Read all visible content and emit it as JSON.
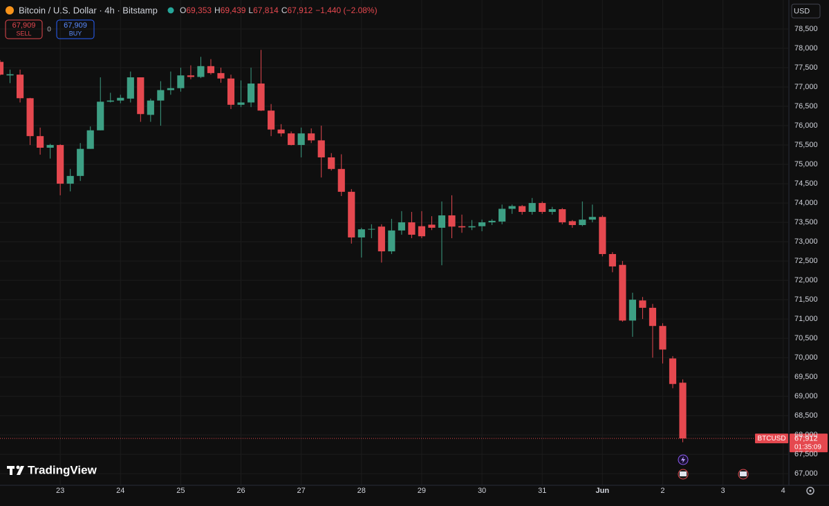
{
  "chart_data": {
    "type": "candlestick",
    "symbol_title": "Bitcoin / U.S. Dollar · 4h · Bitstamp",
    "ohlc_header": [
      {
        "key": "O",
        "value": "69,353"
      },
      {
        "key": "H",
        "value": "69,439"
      },
      {
        "key": "L",
        "value": "67,814"
      },
      {
        "key": "C",
        "value": "67,912"
      }
    ],
    "change": "−1,440 (−2.08%)",
    "sell": {
      "price": "67,909",
      "label": "SELL"
    },
    "spread": "0",
    "buy": {
      "price": "67,909",
      "label": "BUY"
    },
    "currency": "USD",
    "symbol": "BTCUSD",
    "last_price": {
      "value": 67912,
      "label": "67,912"
    },
    "countdown": "01:35:09",
    "brand": "TradingView",
    "up_color": "#3d9f84",
    "down_color": "#e5484f",
    "grid": true,
    "x": [
      0,
      4,
      8,
      12,
      16,
      20,
      24,
      28,
      32,
      36,
      40,
      44,
      48,
      52,
      56,
      60,
      64,
      68,
      72,
      76,
      80,
      84,
      88,
      92,
      96,
      100,
      104,
      108,
      112,
      116,
      120,
      124,
      128,
      132,
      136,
      140,
      144,
      148,
      152,
      156,
      160,
      164,
      168,
      172,
      176,
      180,
      184,
      188,
      192,
      196,
      200,
      204,
      208,
      212,
      216,
      220,
      224,
      228,
      232,
      236,
      240,
      244,
      248,
      252,
      256,
      260,
      264,
      268,
      272
    ],
    "open": [
      77650,
      77300,
      77320,
      76710,
      75730,
      75430,
      75500,
      74500,
      74700,
      75400,
      75880,
      76620,
      76650,
      76700,
      77250,
      76280,
      76650,
      76920,
      76970,
      77300,
      77260,
      77540,
      77360,
      77220,
      76540,
      76600,
      77090,
      76390,
      75900,
      75800,
      75500,
      75800,
      75620,
      75180,
      74880,
      74290,
      73110,
      73320,
      73390,
      72750,
      73290,
      73500,
      73400,
      73440,
      73360,
      73680,
      73400,
      73370,
      73400,
      73500,
      73520,
      73850,
      73920,
      73770,
      74000,
      73770,
      73840,
      73530,
      73430,
      73570,
      73640,
      72680,
      72400,
      70960,
      71480,
      71290,
      70820,
      69980,
      69353
    ],
    "high": [
      77700,
      77450,
      77450,
      76720,
      75950,
      75530,
      75520,
      74880,
      75550,
      75980,
      77250,
      76850,
      76800,
      77400,
      77250,
      76700,
      77150,
      77400,
      77500,
      77560,
      77780,
      77720,
      77500,
      77320,
      77170,
      77500,
      77960,
      76560,
      76040,
      75850,
      75950,
      75930,
      76000,
      75290,
      75260,
      74360,
      73360,
      73450,
      73450,
      73590,
      73790,
      73770,
      73790,
      73660,
      74040,
      74200,
      73700,
      73560,
      73570,
      73580,
      73960,
      73960,
      73950,
      74130,
      74040,
      73900,
      73870,
      73560,
      74040,
      73960,
      73680,
      72730,
      72500,
      71680,
      71570,
      71390,
      70890,
      70040,
      69439
    ],
    "low": [
      77300,
      77100,
      76600,
      75500,
      75250,
      75150,
      74200,
      74300,
      74570,
      75400,
      75880,
      76600,
      76580,
      76600,
      76100,
      76100,
      76000,
      76800,
      76880,
      77200,
      77230,
      77320,
      77110,
      76430,
      76480,
      76480,
      76380,
      75730,
      75720,
      75490,
      75180,
      75550,
      74660,
      74840,
      74180,
      72950,
      72590,
      73090,
      72460,
      72680,
      73180,
      73090,
      73090,
      73300,
      72390,
      73090,
      73230,
      73300,
      73270,
      73430,
      73450,
      73720,
      73700,
      73700,
      73720,
      73700,
      73450,
      73360,
      73400,
      73500,
      72620,
      72210,
      70930,
      70540,
      71000,
      70000,
      69850,
      69210,
      67814
    ],
    "close": [
      77320,
      77330,
      76710,
      75730,
      75430,
      75500,
      74500,
      74700,
      75400,
      75880,
      76620,
      76650,
      76720,
      77250,
      76300,
      76650,
      76920,
      76970,
      77300,
      77260,
      77540,
      77360,
      77220,
      76540,
      76600,
      77090,
      76390,
      75900,
      75800,
      75500,
      75800,
      75620,
      75180,
      74880,
      74290,
      73110,
      73320,
      73330,
      72750,
      73290,
      73500,
      73180,
      73140,
      73360,
      73680,
      73390,
      73370,
      73400,
      73500,
      73540,
      73850,
      73920,
      73770,
      74000,
      73770,
      73840,
      73500,
      73430,
      73570,
      73640,
      72680,
      72360,
      70960,
      71500,
      71290,
      70820,
      70210,
      69320,
      67912
    ],
    "xlim": [
      0,
      314
    ],
    "xticks": [
      {
        "value": 24,
        "label": "23"
      },
      {
        "value": 48,
        "label": "24"
      },
      {
        "value": 72,
        "label": "25"
      },
      {
        "value": 96,
        "label": "26"
      },
      {
        "value": 120,
        "label": "27"
      },
      {
        "value": 144,
        "label": "28"
      },
      {
        "value": 168,
        "label": "29"
      },
      {
        "value": 192,
        "label": "30"
      },
      {
        "value": 216,
        "label": "31"
      },
      {
        "value": 240,
        "label": "Jun"
      },
      {
        "value": 264,
        "label": "2"
      },
      {
        "value": 288,
        "label": "3"
      },
      {
        "value": 312,
        "label": "4"
      }
    ],
    "ylim": [
      66700,
      79250
    ],
    "yticks": [
      {
        "value": 78500,
        "label": "78,500"
      },
      {
        "value": 78000,
        "label": "78,000"
      },
      {
        "value": 77500,
        "label": "77,500"
      },
      {
        "value": 77000,
        "label": "77,000"
      },
      {
        "value": 76500,
        "label": "76,500"
      },
      {
        "value": 76000,
        "label": "76,000"
      },
      {
        "value": 75500,
        "label": "75,500"
      },
      {
        "value": 75000,
        "label": "75,000"
      },
      {
        "value": 74500,
        "label": "74,500"
      },
      {
        "value": 74000,
        "label": "74,000"
      },
      {
        "value": 73500,
        "label": "73,500"
      },
      {
        "value": 73000,
        "label": "73,000"
      },
      {
        "value": 72500,
        "label": "72,500"
      },
      {
        "value": 72000,
        "label": "72,000"
      },
      {
        "value": 71500,
        "label": "71,500"
      },
      {
        "value": 71000,
        "label": "71,000"
      },
      {
        "value": 70500,
        "label": "70,500"
      },
      {
        "value": 70000,
        "label": "70,000"
      },
      {
        "value": 69500,
        "label": "69,500"
      },
      {
        "value": 69000,
        "label": "69,000"
      },
      {
        "value": 68500,
        "label": "68,500"
      },
      {
        "value": 68000,
        "label": "68,000"
      },
      {
        "value": 67500,
        "label": "67,500"
      },
      {
        "value": 67000,
        "label": "67,000"
      }
    ]
  }
}
